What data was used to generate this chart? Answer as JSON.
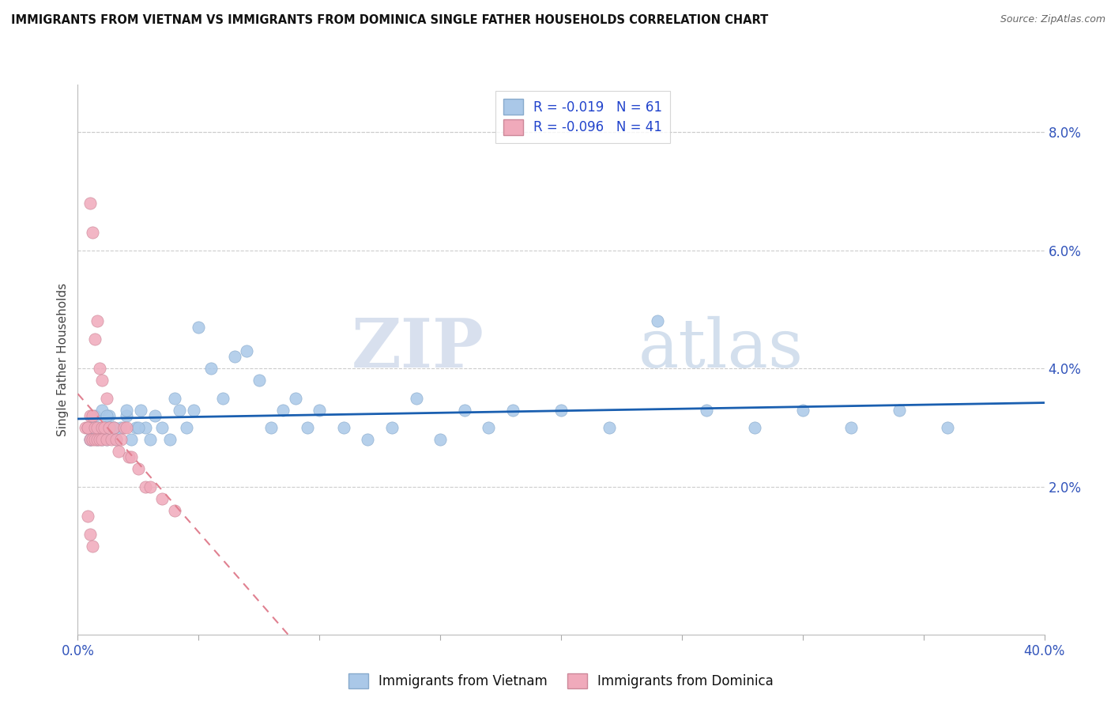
{
  "title": "IMMIGRANTS FROM VIETNAM VS IMMIGRANTS FROM DOMINICA SINGLE FATHER HOUSEHOLDS CORRELATION CHART",
  "source": "Source: ZipAtlas.com",
  "ylabel": "Single Father Households",
  "ylabel_right_ticks": [
    "8.0%",
    "6.0%",
    "4.0%",
    "2.0%"
  ],
  "ylabel_right_vals": [
    0.08,
    0.06,
    0.04,
    0.02
  ],
  "xlim": [
    0.0,
    0.4
  ],
  "ylim": [
    -0.005,
    0.088
  ],
  "legend_blue_R": "R = -0.019",
  "legend_blue_N": "N = 61",
  "legend_pink_R": "R = -0.096",
  "legend_pink_N": "N = 41",
  "legend_label_blue": "Immigrants from Vietnam",
  "legend_label_pink": "Immigrants from Dominica",
  "color_blue": "#aac8e8",
  "color_pink": "#f0aabb",
  "color_line_blue": "#1a5fb0",
  "color_line_pink": "#e08090",
  "watermark_zip": "ZIP",
  "watermark_atlas": "atlas",
  "blue_scatter_x": [
    0.004,
    0.005,
    0.006,
    0.007,
    0.008,
    0.009,
    0.01,
    0.011,
    0.012,
    0.013,
    0.015,
    0.016,
    0.018,
    0.02,
    0.022,
    0.024,
    0.026,
    0.028,
    0.03,
    0.032,
    0.035,
    0.038,
    0.04,
    0.042,
    0.045,
    0.048,
    0.05,
    0.055,
    0.06,
    0.065,
    0.07,
    0.075,
    0.08,
    0.085,
    0.09,
    0.095,
    0.1,
    0.11,
    0.12,
    0.13,
    0.14,
    0.15,
    0.16,
    0.17,
    0.18,
    0.2,
    0.22,
    0.24,
    0.26,
    0.28,
    0.3,
    0.32,
    0.34,
    0.36,
    0.005,
    0.007,
    0.01,
    0.012,
    0.015,
    0.02,
    0.025
  ],
  "blue_scatter_y": [
    0.03,
    0.028,
    0.03,
    0.032,
    0.028,
    0.03,
    0.033,
    0.03,
    0.028,
    0.032,
    0.03,
    0.028,
    0.03,
    0.032,
    0.028,
    0.03,
    0.033,
    0.03,
    0.028,
    0.032,
    0.03,
    0.028,
    0.035,
    0.033,
    0.03,
    0.033,
    0.047,
    0.04,
    0.035,
    0.042,
    0.043,
    0.038,
    0.03,
    0.033,
    0.035,
    0.03,
    0.033,
    0.03,
    0.028,
    0.03,
    0.035,
    0.028,
    0.033,
    0.03,
    0.033,
    0.033,
    0.03,
    0.048,
    0.033,
    0.03,
    0.033,
    0.03,
    0.033,
    0.03,
    0.028,
    0.03,
    0.028,
    0.032,
    0.03,
    0.033,
    0.03
  ],
  "pink_scatter_x": [
    0.003,
    0.004,
    0.004,
    0.005,
    0.005,
    0.005,
    0.006,
    0.006,
    0.006,
    0.007,
    0.007,
    0.007,
    0.008,
    0.008,
    0.008,
    0.009,
    0.009,
    0.01,
    0.01,
    0.01,
    0.011,
    0.012,
    0.012,
    0.013,
    0.014,
    0.015,
    0.016,
    0.017,
    0.018,
    0.019,
    0.02,
    0.021,
    0.022,
    0.025,
    0.028,
    0.03,
    0.035,
    0.04,
    0.004,
    0.005,
    0.006
  ],
  "pink_scatter_y": [
    0.03,
    0.03,
    0.03,
    0.068,
    0.032,
    0.028,
    0.063,
    0.032,
    0.028,
    0.045,
    0.03,
    0.028,
    0.048,
    0.03,
    0.028,
    0.04,
    0.028,
    0.038,
    0.03,
    0.028,
    0.03,
    0.035,
    0.028,
    0.03,
    0.028,
    0.03,
    0.028,
    0.026,
    0.028,
    0.03,
    0.03,
    0.025,
    0.025,
    0.023,
    0.02,
    0.02,
    0.018,
    0.016,
    0.015,
    0.012,
    0.01
  ]
}
